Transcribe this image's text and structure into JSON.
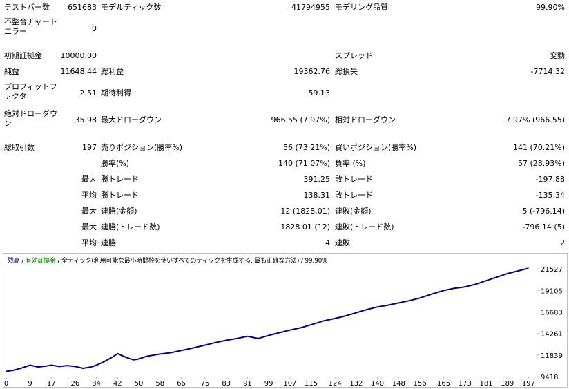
{
  "report": {
    "row1": {
      "bars_label": "テストバー数",
      "bars_value": "651683",
      "ticks_label": "モデルティック数",
      "ticks_value": "41794955",
      "quality_label": "モデリング品質",
      "quality_value": "99.90%"
    },
    "row2": {
      "mismatch_label": "不整合チャートエラー",
      "mismatch_value": "0"
    },
    "row3": {
      "deposit_label": "初期証拠金",
      "deposit_value": "10000.00",
      "spread_label": "スプレッド",
      "spread_value": "変動"
    },
    "row4": {
      "net_label": "純益",
      "net_value": "11648.44",
      "gross_profit_label": "総利益",
      "gross_profit_value": "19362.76",
      "gross_loss_label": "総損失",
      "gross_loss_value": "-7714.32"
    },
    "row5": {
      "pf_label": "プロフィットファクタ",
      "pf_value": "2.51",
      "expected_label": "期待利得",
      "expected_value": "59.13"
    },
    "row6": {
      "abs_dd_label": "絶対ドローダウン",
      "abs_dd_value": "35.98",
      "max_dd_label": "最大ドローダウン",
      "max_dd_value": "966.55 (7.97%)",
      "rel_dd_label": "相対ドローダウン",
      "rel_dd_value": "7.97% (966.55)"
    },
    "row7": {
      "total_label": "総取引数",
      "total_value": "197",
      "short_label": "売りポジション(勝率%)",
      "short_value": "56 (73.21%)",
      "long_label": "買いポジション(勝率%)",
      "long_value": "141 (70.21%)"
    },
    "row8": {
      "win_label": "勝率(%)",
      "win_value": "140 (71.07%)",
      "loss_label": "負率 (%)",
      "loss_value": "57 (28.93%)"
    },
    "row9": {
      "prefix": "最大",
      "win_label": "勝トレード",
      "win_value": "391.25",
      "loss_label": "敗トレード",
      "loss_value": "-197.88"
    },
    "row10": {
      "prefix": "平均",
      "win_label": "勝トレード",
      "win_value": "138.31",
      "loss_label": "敗トレード",
      "loss_value": "-135.34"
    },
    "row11": {
      "prefix": "最大",
      "win_label": "連勝(金額)",
      "win_value": "12 (1828.01)",
      "loss_label": "連敗(金額)",
      "loss_value": "5 (-796.14)"
    },
    "row12": {
      "prefix": "最大",
      "win_label": "連勝(トレード数)",
      "win_value": "1828.01 (12)",
      "loss_label": "連敗(トレード数)",
      "loss_value": "-796.14 (5)"
    },
    "row13": {
      "prefix": "平均",
      "win_label": "連勝",
      "win_value": "4",
      "loss_label": "連敗",
      "loss_value": "2"
    }
  },
  "chart_legend": {
    "balance": "残高",
    "sep1": " / ",
    "equity": "有効証拠金",
    "sep2": " / ",
    "mode": "全ティック(利用可能な最小時間枠を使いすべてのティックを生成する, 最も正確な方法)",
    "sep3": " / ",
    "quality": "99.90%"
  },
  "colors": {
    "balance_line": "#00008b",
    "equity_text": "#008000",
    "grid": "#c0c0c0"
  },
  "chart_data": {
    "type": "line",
    "title": "",
    "xlabel": "",
    "ylabel": "",
    "xlim": [
      0,
      200
    ],
    "ylim": [
      9418,
      22780
    ],
    "x_ticks": [
      0,
      9,
      17,
      26,
      34,
      42,
      50,
      58,
      66,
      75,
      83,
      91,
      99,
      107,
      115,
      124,
      132,
      140,
      148,
      156,
      165,
      173,
      181,
      189,
      197
    ],
    "y_ticks": [
      9418,
      11839,
      14261,
      16683,
      19105,
      21527
    ],
    "series": [
      {
        "name": "残高",
        "x": [
          0,
          3,
          6,
          9,
          12,
          15,
          17,
          20,
          23,
          26,
          29,
          32,
          34,
          37,
          40,
          42,
          45,
          48,
          50,
          53,
          56,
          58,
          62,
          66,
          70,
          75,
          79,
          83,
          87,
          91,
          95,
          99,
          103,
          107,
          111,
          115,
          120,
          124,
          128,
          132,
          136,
          140,
          144,
          148,
          152,
          156,
          160,
          165,
          169,
          173,
          177,
          181,
          185,
          189,
          193,
          197
        ],
        "y": [
          10000,
          10150,
          10400,
          10700,
          10500,
          10600,
          10700,
          10550,
          10650,
          10550,
          10350,
          10500,
          10700,
          11100,
          11600,
          12000,
          11600,
          11300,
          11400,
          11700,
          11850,
          11950,
          12100,
          12350,
          12600,
          12950,
          13250,
          13500,
          13700,
          13950,
          13700,
          14050,
          14350,
          14650,
          14900,
          15250,
          15700,
          15950,
          16250,
          16600,
          16950,
          17250,
          17450,
          17700,
          17950,
          18250,
          18650,
          19100,
          19350,
          19500,
          19800,
          20200,
          20600,
          21000,
          21300,
          21600
        ]
      }
    ]
  }
}
